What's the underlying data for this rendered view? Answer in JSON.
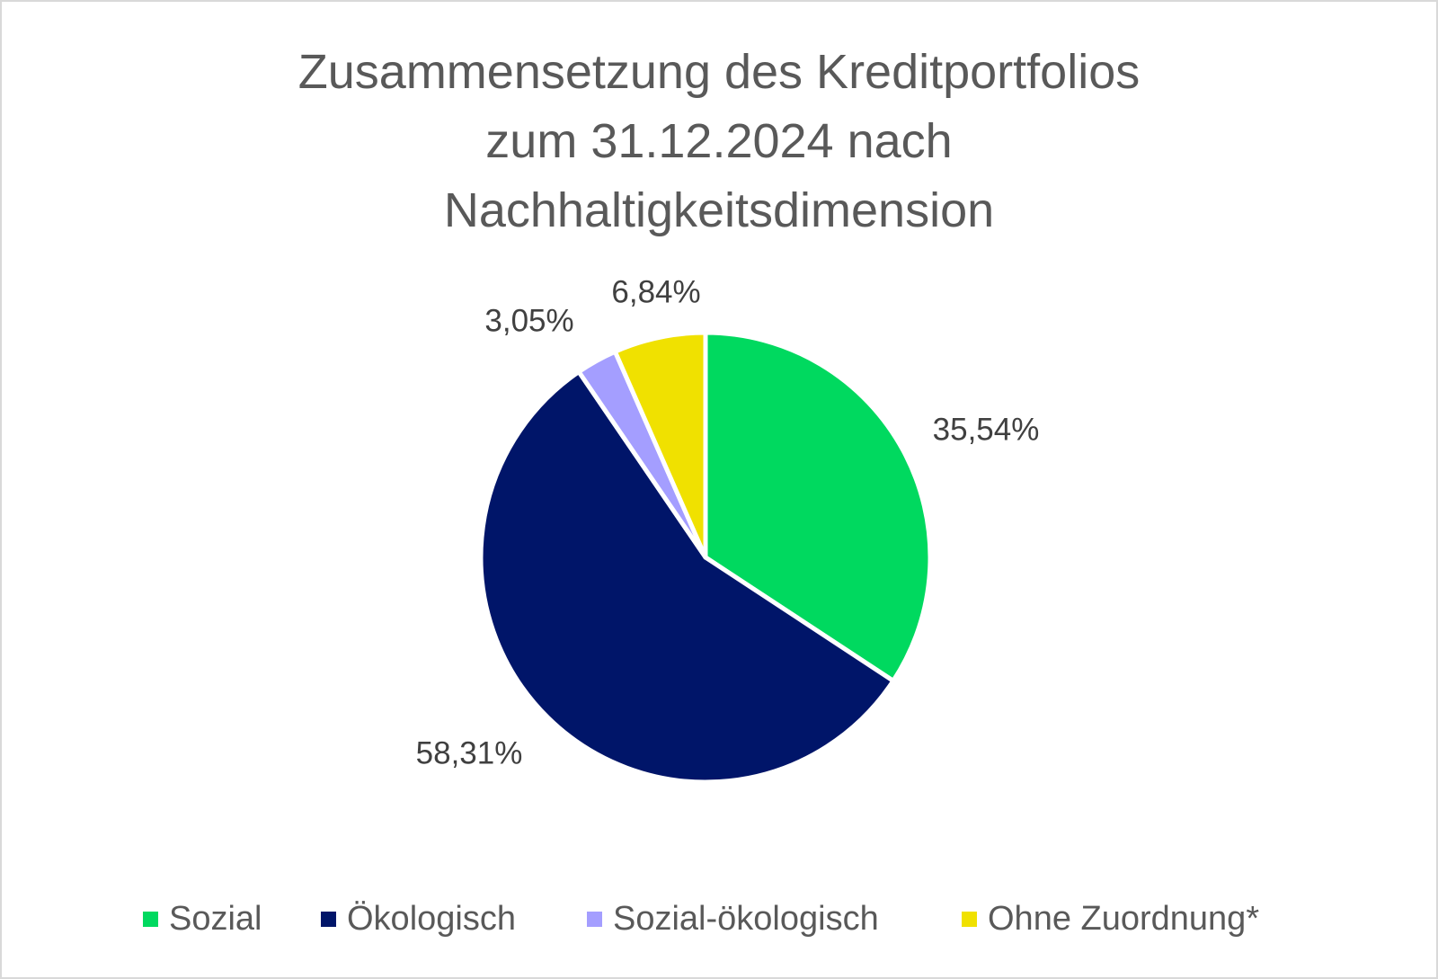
{
  "chart_data": {
    "type": "pie",
    "title": "Zusammensetzung des Kreditportfolios zum 31.12.2024 nach Nachhaltigkeitsdimension",
    "title_lines": [
      "Zusammensetzung des Kreditportfolios",
      "zum 31.12.2024 nach",
      "Nachhaltigkeitsdimension"
    ],
    "categories": [
      "Sozial",
      "Ökologisch",
      "Sozial-ökologisch",
      "Ohne Zuordnung*"
    ],
    "values": [
      35.54,
      58.31,
      3.05,
      6.84
    ],
    "value_labels": [
      "35,54%",
      "58,31%",
      "3,05%",
      "6,84%"
    ],
    "colors": [
      "#00d95f",
      "#001569",
      "#a49eff",
      "#f0e100"
    ],
    "legend_position": "bottom",
    "start_angle_deg": 0,
    "direction": "clockwise"
  }
}
